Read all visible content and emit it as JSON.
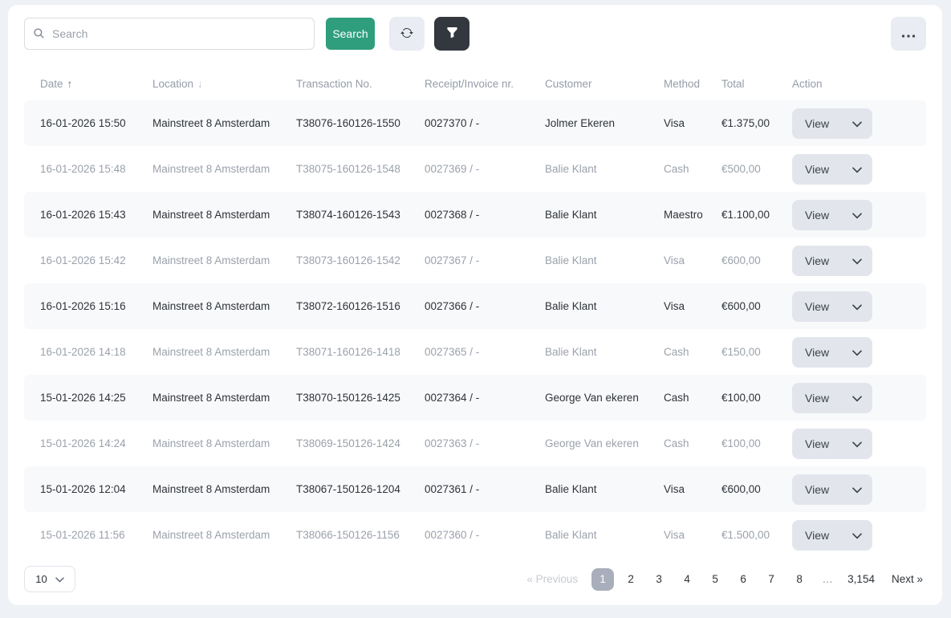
{
  "toolbar": {
    "search_placeholder": "Search",
    "search_button_label": "Search",
    "search_icon": "magnifier",
    "refresh_icon": "circular-arrows",
    "filter_icon": "funnel",
    "more_icon": "ellipsis"
  },
  "table": {
    "columns": [
      {
        "key": "date",
        "label": "Date",
        "sort": "asc"
      },
      {
        "key": "location",
        "label": "Location",
        "sort": "desc"
      },
      {
        "key": "transaction_no",
        "label": "Transaction No."
      },
      {
        "key": "receipt_invoice",
        "label": "Receipt/Invoice nr."
      },
      {
        "key": "customer",
        "label": "Customer"
      },
      {
        "key": "method",
        "label": "Method"
      },
      {
        "key": "total",
        "label": "Total"
      },
      {
        "key": "action",
        "label": "Action"
      }
    ],
    "view_button_label": "View",
    "rows": [
      {
        "date": "16-01-2026 15:50",
        "location": "Mainstreet 8 Amsterdam",
        "transaction_no": "T38076-160126-1550",
        "receipt_invoice": "0027370 / -",
        "customer": "Jolmer Ekeren",
        "method": "Visa",
        "total": "€1.375,00"
      },
      {
        "date": "16-01-2026 15:48",
        "location": "Mainstreet 8 Amsterdam",
        "transaction_no": "T38075-160126-1548",
        "receipt_invoice": "0027369 / -",
        "customer": "Balie Klant",
        "method": "Cash",
        "total": "€500,00"
      },
      {
        "date": "16-01-2026 15:43",
        "location": "Mainstreet 8 Amsterdam",
        "transaction_no": "T38074-160126-1543",
        "receipt_invoice": "0027368 / -",
        "customer": "Balie Klant",
        "method": "Maestro",
        "total": "€1.100,00"
      },
      {
        "date": "16-01-2026 15:42",
        "location": "Mainstreet 8 Amsterdam",
        "transaction_no": "T38073-160126-1542",
        "receipt_invoice": "0027367 / -",
        "customer": "Balie Klant",
        "method": "Visa",
        "total": "€600,00"
      },
      {
        "date": "16-01-2026 15:16",
        "location": "Mainstreet 8 Amsterdam",
        "transaction_no": "T38072-160126-1516",
        "receipt_invoice": "0027366 / -",
        "customer": "Balie Klant",
        "method": "Visa",
        "total": "€600,00"
      },
      {
        "date": "16-01-2026 14:18",
        "location": "Mainstreet 8 Amsterdam",
        "transaction_no": "T38071-160126-1418",
        "receipt_invoice": "0027365 / -",
        "customer": "Balie Klant",
        "method": "Cash",
        "total": "€150,00"
      },
      {
        "date": "15-01-2026 14:25",
        "location": "Mainstreet 8 Amsterdam",
        "transaction_no": "T38070-150126-1425",
        "receipt_invoice": "0027364 / -",
        "customer": "George Van ekeren",
        "method": "Cash",
        "total": "€100,00"
      },
      {
        "date": "15-01-2026 14:24",
        "location": "Mainstreet 8 Amsterdam",
        "transaction_no": "T38069-150126-1424",
        "receipt_invoice": "0027363 / -",
        "customer": "George Van ekeren",
        "method": "Cash",
        "total": "€100,00"
      },
      {
        "date": "15-01-2026 12:04",
        "location": "Mainstreet 8 Amsterdam",
        "transaction_no": "T38067-150126-1204",
        "receipt_invoice": "0027361 / -",
        "customer": "Balie Klant",
        "method": "Visa",
        "total": "€600,00"
      },
      {
        "date": "15-01-2026 11:56",
        "location": "Mainstreet 8 Amsterdam",
        "transaction_no": "T38066-150126-1156",
        "receipt_invoice": "0027360 / -",
        "customer": "Balie Klant",
        "method": "Visa",
        "total": "€1.500,00"
      }
    ]
  },
  "pagination": {
    "page_size": "10",
    "previous_label": "« Previous",
    "next_label": "Next »",
    "pages": [
      {
        "label": "1",
        "active": true
      },
      {
        "label": "2"
      },
      {
        "label": "3"
      },
      {
        "label": "4"
      },
      {
        "label": "5"
      },
      {
        "label": "6"
      },
      {
        "label": "7"
      },
      {
        "label": "8"
      },
      {
        "label": "…",
        "ellipsis": true
      },
      {
        "label": "3,154"
      }
    ]
  },
  "colors": {
    "accent_green": "#2f9e7d",
    "dark_button": "#33383e",
    "light_button": "#e9ecf2",
    "stripe_row": "#f8f9fb",
    "active_page": "#a9aebc",
    "page_background": "#eef1f5"
  }
}
